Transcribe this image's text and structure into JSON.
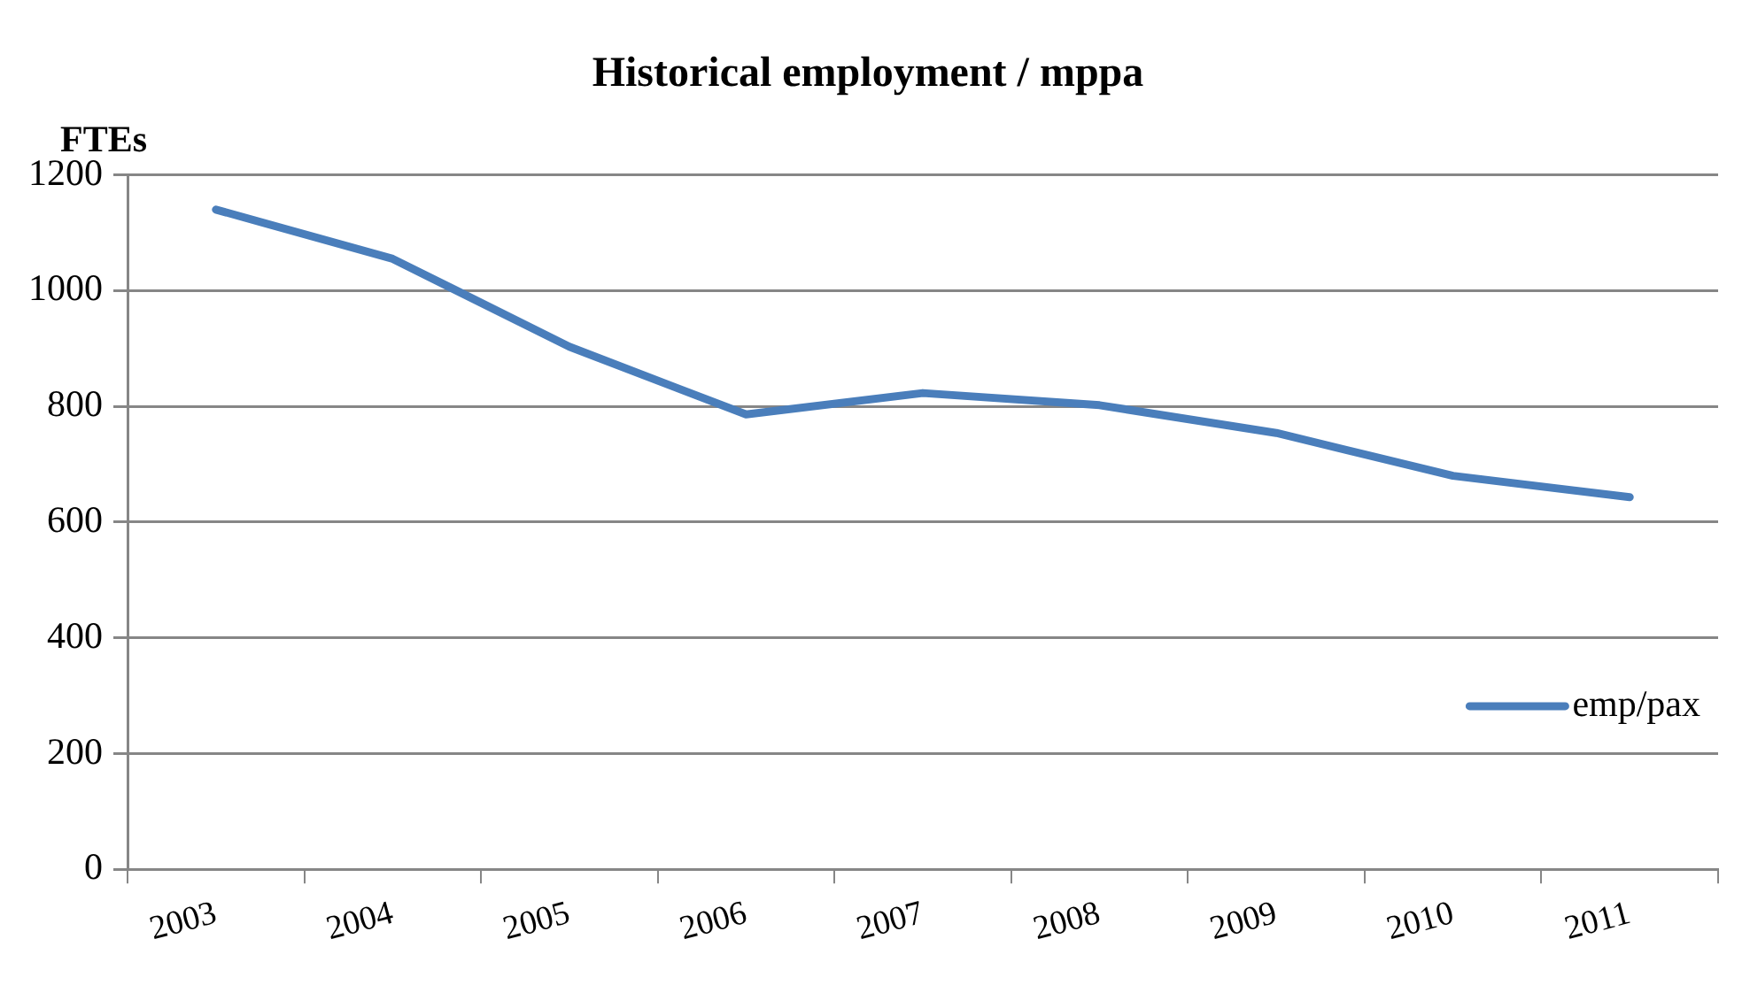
{
  "chart_data": {
    "type": "line",
    "title": "Historical employment / mppa",
    "ylabel": "FTEs",
    "categories": [
      "2003",
      "2004",
      "2005",
      "2006",
      "2007",
      "2008",
      "2009",
      "2010",
      "2011"
    ],
    "series": [
      {
        "name": "emp/pax",
        "color": "#4a7ebb",
        "values": [
          1140,
          1055,
          903,
          786,
          823,
          802,
          754,
          680,
          643
        ]
      }
    ],
    "ylim": [
      0,
      1200
    ],
    "yticks": [
      0,
      200,
      400,
      600,
      800,
      1000,
      1200
    ],
    "grid": "y",
    "legend": "right",
    "marker": "none",
    "line_style": "solid"
  }
}
